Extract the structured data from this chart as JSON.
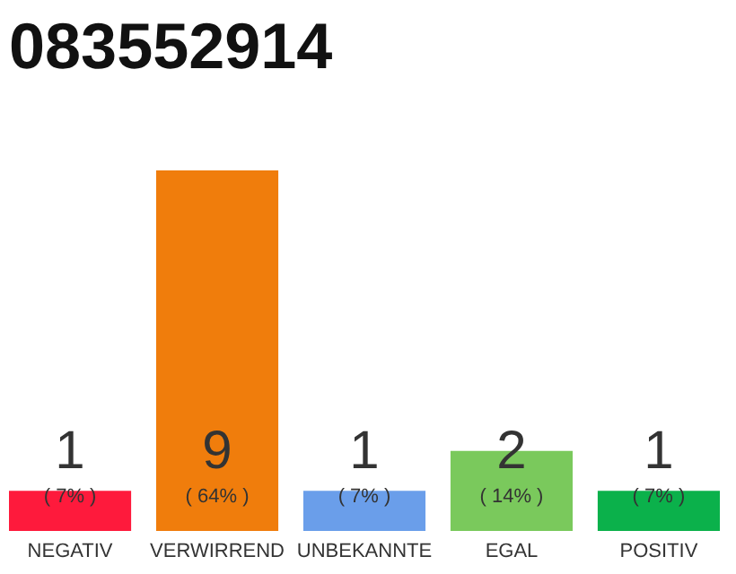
{
  "chart_data": {
    "type": "bar",
    "title": "083552914",
    "categories": [
      "NEGATIV",
      "VERWIRREND",
      "UNBEKANNTE",
      "EGAL",
      "POSITIV"
    ],
    "values": [
      1,
      9,
      1,
      2,
      1
    ],
    "colors": [
      "#fe1a3c",
      "#f07d0c",
      "#6a9eea",
      "#7ac95c",
      "#0bb14b"
    ],
    "data_labels": true,
    "annotations": [
      "( 7% )",
      "( 64% )",
      "( 7% )",
      "( 14% )",
      "( 7% )"
    ]
  }
}
